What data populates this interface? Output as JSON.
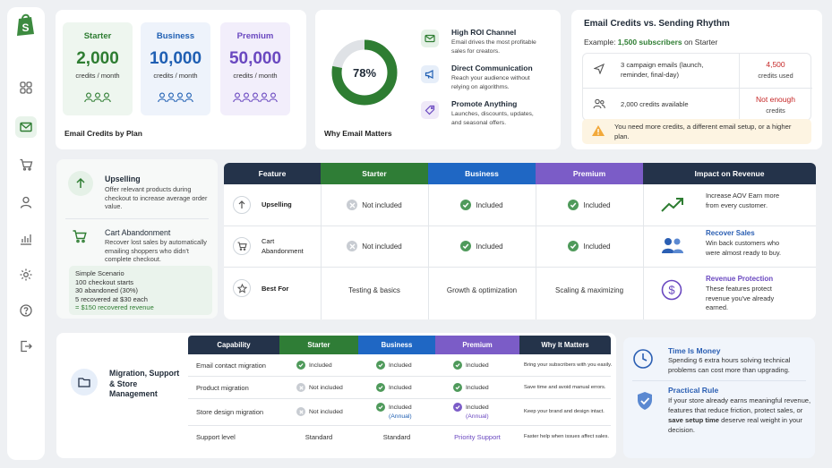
{
  "sidebar": {
    "items": [
      "dashboard-icon",
      "email-icon",
      "cart-icon",
      "user-icon",
      "analytics-icon",
      "settings-icon",
      "help-icon",
      "logout-icon"
    ]
  },
  "plans": {
    "title": "Email Credits by Plan",
    "items": [
      {
        "name": "Starter",
        "credits": "2,000",
        "unit": "credits / month",
        "color": "#2e7d32",
        "bg": "#eef6ef",
        "people": 3
      },
      {
        "name": "Business",
        "credits": "10,000",
        "unit": "credits / month",
        "color": "#1f5fb3",
        "bg": "#eef3fb",
        "people": 4
      },
      {
        "name": "Premium",
        "credits": "50,000",
        "unit": "credits / month",
        "color": "#6a48c0",
        "bg": "#f2eefb",
        "people": 5
      }
    ]
  },
  "why_email": {
    "title": "Why Email Matters",
    "percent": "78%",
    "percent_value": 0.78,
    "items": [
      {
        "title": "High ROI Channel",
        "text": "Email drives the most profitable sales for creators."
      },
      {
        "title": "Direct Communication",
        "text": "Reach your audience without relying on algorithms."
      },
      {
        "title": "Promote Anything",
        "text": "Launches, discounts, updates, and seasonal offers."
      }
    ]
  },
  "rhythm": {
    "title": "Email Credits vs. Sending Rhythm",
    "example_prefix": "Example: ",
    "example_highlight": "1,500 subscribers",
    "example_suffix": " on Starter",
    "rows": [
      {
        "text": "3 campaign emails (launch, reminder, final-day)",
        "value": "4,500",
        "value_sub": "credits used"
      },
      {
        "text": "2,000 credits available",
        "value": "Not enough",
        "value_sub": "credits"
      }
    ],
    "warning": "You need more credits, a different email setup, or a higher plan."
  },
  "features_side": {
    "upsell_title": "Upselling",
    "upsell_text": "Offer relevant products during checkout to increase average order value.",
    "cart_title": "Cart Abandonment",
    "cart_text": "Recover lost sales by automatically emailing shoppers who didn't complete checkout.",
    "scenario": [
      "Simple Scenario",
      "100 checkout starts",
      "30 abandoned (30%)",
      "5 recovered at $30 each",
      "= $150 recovered revenue"
    ]
  },
  "feature_table": {
    "headers": [
      "Feature",
      "Starter",
      "Business",
      "Premium",
      "Impact on Revenue"
    ],
    "rows": [
      {
        "feature": "Upselling",
        "starter": "Not included",
        "business": "Included",
        "premium": "Included"
      },
      {
        "feature": "Cart Abandonment",
        "starter": "Not included",
        "business": "Included",
        "premium": "Included"
      },
      {
        "feature": "Best For",
        "starter": "Testing & basics",
        "business": "Growth & optimization",
        "premium": "Scaling & maximizing"
      }
    ],
    "impact": [
      {
        "title": "",
        "text": "Increase AOV Earn more from every customer."
      },
      {
        "title": "Recover Sales",
        "text": "Win back customers who were almost ready to buy."
      },
      {
        "title": "Revenue Protection",
        "text": "These features protect revenue you've already earned."
      }
    ]
  },
  "migration": {
    "title": "Migration, Support & Store Management",
    "headers": [
      "Capability",
      "Starter",
      "Business",
      "Premium",
      "Why It Matters"
    ],
    "rows": [
      {
        "cap": "Email contact migration",
        "starter": "Included",
        "business": "Included",
        "premium": "Included",
        "why": "Bring your subscribers with you easily."
      },
      {
        "cap": "Product migration",
        "starter": "Not included",
        "business": "Included",
        "premium": "Included",
        "why": "Save time and avoid manual errors."
      },
      {
        "cap": "Store design migration",
        "starter": "Not included",
        "business": "Included",
        "business_sub": "(Annual)",
        "premium": "Included",
        "premium_sub": "(Annual)",
        "why": "Keep your brand and design intact."
      },
      {
        "cap": "Support level",
        "starter": "Standard",
        "business": "Standard",
        "premium": "Priority Support",
        "why": "Faster help when issues affect sales."
      }
    ]
  },
  "time_money": {
    "title": "Time Is Money",
    "text": "Spending 6 extra hours solving technical problems can cost more than upgrading.",
    "rule_title": "Practical Rule",
    "rule_text_1": "If your store already earns meaningful revenue, features that reduce friction, protect sales, or ",
    "rule_bold": "save setup time",
    "rule_text_2": " deserve real weight in your decision."
  }
}
